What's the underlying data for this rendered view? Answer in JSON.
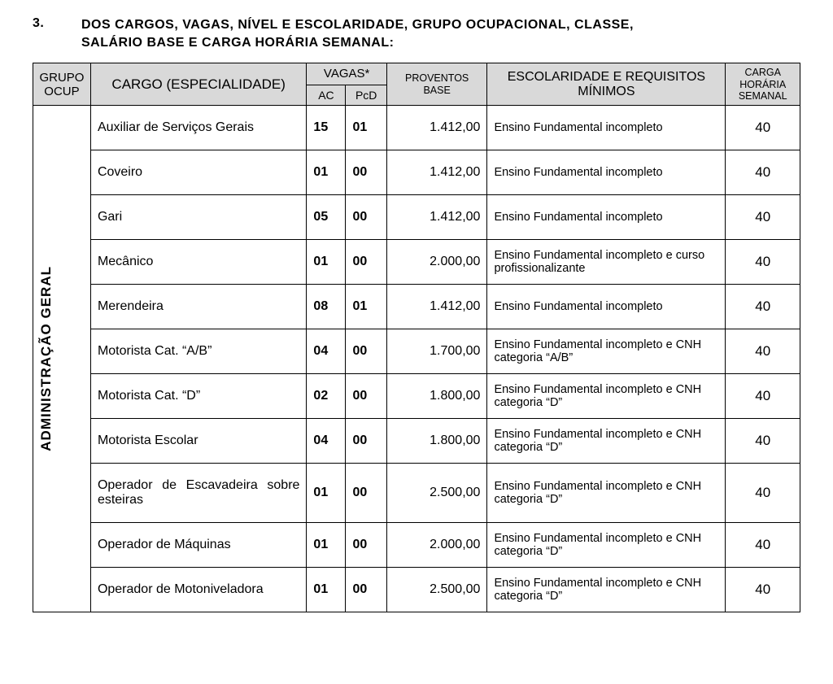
{
  "heading": {
    "number": "3.",
    "text_line1": "DOS  CARGOS,  VAGAS,  NÍVEL  E  ESCOLARIDADE,  GRUPO  OCUPACIONAL,  CLASSE,",
    "text_line2": "SALÁRIO BASE E CARGA HORÁRIA SEMANAL:"
  },
  "headers": {
    "grupo": "GRUPO OCUP",
    "cargo": "CARGO (ESPECIALIDADE)",
    "vagas": "VAGAS*",
    "ac": "AC",
    "pcd": "PcD",
    "proventos": "PROVENTOS BASE",
    "escolaridade": "ESCOLARIDADE E REQUISITOS MÍNIMOS",
    "carga": "CARGA HORÁRIA SEMANAL"
  },
  "grupo_label": "ADMINISTRAÇÃO GERAL",
  "rows": [
    {
      "cargo": "Auxiliar de Serviços Gerais",
      "ac": "15",
      "pcd": "01",
      "prov": "1.412,00",
      "esc": "Ensino Fundamental incompleto",
      "carga": "40"
    },
    {
      "cargo": "Coveiro",
      "ac": "01",
      "pcd": "00",
      "prov": "1.412,00",
      "esc": "Ensino Fundamental incompleto",
      "carga": "40"
    },
    {
      "cargo": "Gari",
      "ac": "05",
      "pcd": "00",
      "prov": "1.412,00",
      "esc": "Ensino Fundamental incompleto",
      "carga": "40"
    },
    {
      "cargo": "Mecânico",
      "ac": "01",
      "pcd": "00",
      "prov": "2.000,00",
      "esc": "Ensino Fundamental incompleto e curso profissionalizante",
      "carga": "40"
    },
    {
      "cargo": "Merendeira",
      "ac": "08",
      "pcd": "01",
      "prov": "1.412,00",
      "esc": "Ensino Fundamental incompleto",
      "carga": "40"
    },
    {
      "cargo": "Motorista Cat. “A/B”",
      "ac": "04",
      "pcd": "00",
      "prov": "1.700,00",
      "esc": "Ensino Fundamental incompleto e CNH categoria “A/B”",
      "carga": "40"
    },
    {
      "cargo": "Motorista Cat. “D”",
      "ac": "02",
      "pcd": "00",
      "prov": "1.800,00",
      "esc": "Ensino Fundamental incompleto e CNH categoria “D”",
      "carga": "40"
    },
    {
      "cargo": "Motorista Escolar",
      "ac": "04",
      "pcd": "00",
      "prov": "1.800,00",
      "esc": "Ensino Fundamental incompleto e CNH categoria “D”",
      "carga": "40"
    },
    {
      "cargo": "Operador de Escavadeira sobre esteiras",
      "ac": "01",
      "pcd": "00",
      "prov": "2.500,00",
      "esc": "Ensino Fundamental incompleto e CNH categoria “D”",
      "carga": "40"
    },
    {
      "cargo": "Operador de Máquinas",
      "ac": "01",
      "pcd": "00",
      "prov": "2.000,00",
      "esc": "Ensino Fundamental incompleto e CNH categoria “D”",
      "carga": "40"
    },
    {
      "cargo": "Operador de Motoniveladora",
      "ac": "01",
      "pcd": "00",
      "prov": "2.500,00",
      "esc": "Ensino Fundamental incompleto e CNH categoria “D”",
      "carga": "40"
    }
  ]
}
